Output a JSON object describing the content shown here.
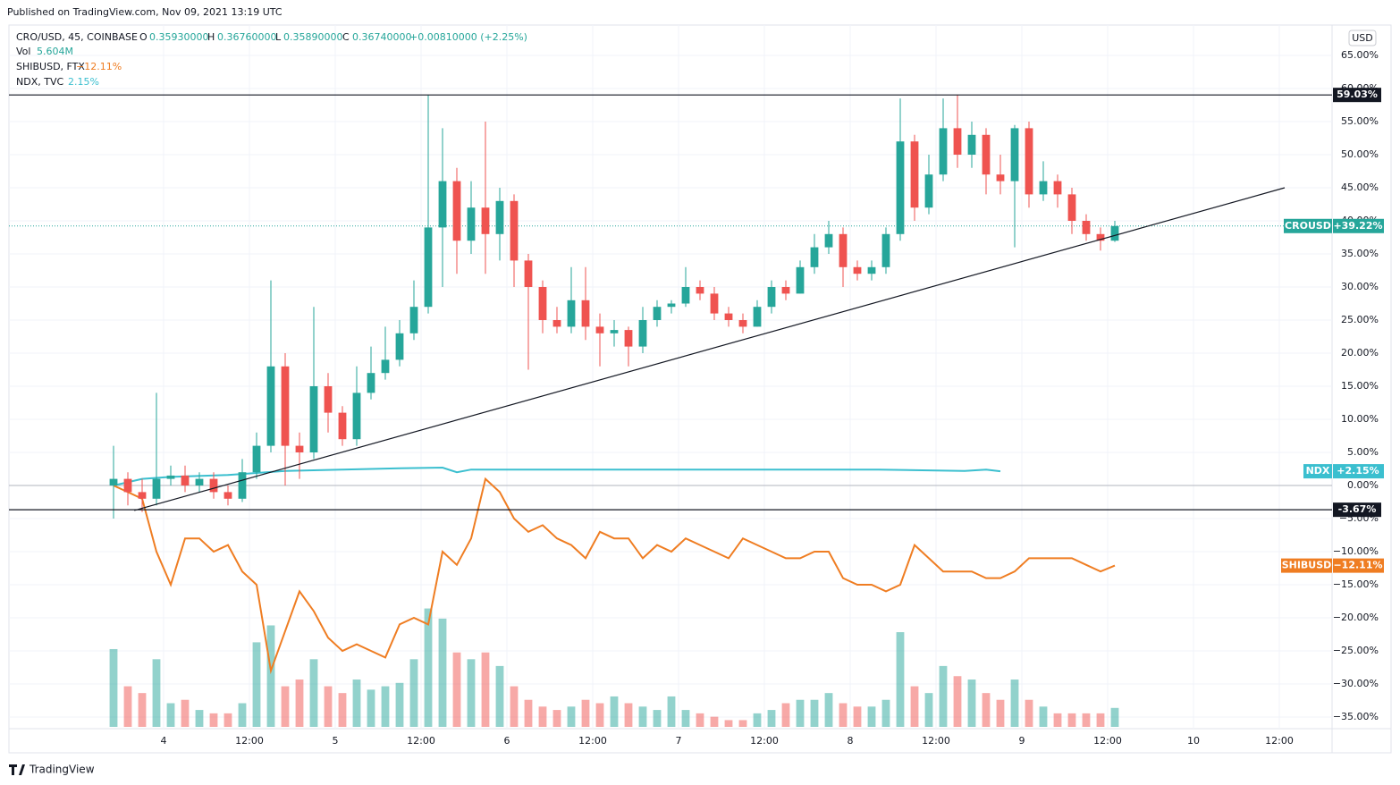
{
  "header": "Published on TradingView.com, Nov 09, 2021 13:19 UTC",
  "footer": "TradingView",
  "currency": "USD",
  "legend": {
    "symbol": "CRO/USD, 45, COINBASE",
    "o_key": "O",
    "o": "0.35930000",
    "h_key": "H",
    "h": "0.36760000",
    "l_key": "L",
    "l": "0.35890000",
    "c_key": "C",
    "c": "0.36740000",
    "change": "+0.00810000 (+2.25%)",
    "vol_key": "Vol",
    "vol": "5.604M",
    "shib_key": "SHIBUSD, FTX",
    "shib": "−12.11%",
    "ndx_key": "NDX, TVC",
    "ndx": "2.15%"
  },
  "chart_data": {
    "type": "candlestick",
    "x": [
      -7,
      -5,
      -3,
      -1,
      1,
      3,
      5,
      7,
      9,
      11,
      13,
      15,
      17,
      19,
      21,
      23,
      25,
      27,
      29,
      31,
      33,
      35,
      37,
      39,
      41,
      43,
      45,
      47,
      49,
      51,
      53,
      55,
      57,
      59,
      61,
      63,
      65,
      67,
      69,
      71,
      73,
      75,
      77,
      79,
      81,
      83,
      85,
      87,
      89,
      91,
      93,
      95,
      97,
      99,
      101,
      103,
      105,
      107,
      109,
      111,
      113,
      115,
      117,
      119,
      121,
      123,
      125,
      127,
      129,
      131,
      133
    ],
    "xlim": [
      -21.625,
      163.375
    ],
    "xticks": [
      {
        "value": 0,
        "label": "4"
      },
      {
        "value": 12,
        "label": "12:00"
      },
      {
        "value": 24,
        "label": "5"
      },
      {
        "value": 36,
        "label": "12:00"
      },
      {
        "value": 48,
        "label": "6"
      },
      {
        "value": 60,
        "label": "12:00"
      },
      {
        "value": 72,
        "label": "7"
      },
      {
        "value": 84,
        "label": "12:00"
      },
      {
        "value": 96,
        "label": "8"
      },
      {
        "value": 108,
        "label": "12:00"
      },
      {
        "value": 120,
        "label": "9"
      },
      {
        "value": 132,
        "label": "12:00"
      },
      {
        "value": 144,
        "label": "10"
      },
      {
        "value": 156,
        "label": "12:00"
      }
    ],
    "ylim": [
      -36.757,
      69.595
    ],
    "yticks": [
      {
        "value": 65,
        "label": "65.00%"
      },
      {
        "value": 60,
        "label": "60.00%"
      },
      {
        "value": 55,
        "label": "55.00%"
      },
      {
        "value": 50,
        "label": "50.00%"
      },
      {
        "value": 45,
        "label": "45.00%"
      },
      {
        "value": 40,
        "label": "40.00%"
      },
      {
        "value": 35,
        "label": "35.00%"
      },
      {
        "value": 30,
        "label": "30.00%"
      },
      {
        "value": 25,
        "label": "25.00%"
      },
      {
        "value": 20,
        "label": "20.00%"
      },
      {
        "value": 15,
        "label": "15.00%"
      },
      {
        "value": 10,
        "label": "10.00%"
      },
      {
        "value": 5,
        "label": "5.00%"
      },
      {
        "value": 0,
        "label": "0.00%"
      },
      {
        "value": -5,
        "label": "−5.00%"
      },
      {
        "value": -10,
        "label": "−10.00%"
      },
      {
        "value": -15,
        "label": "−15.00%"
      },
      {
        "value": -20,
        "label": "−20.00%"
      },
      {
        "value": -25,
        "label": "−25.00%"
      },
      {
        "value": -30,
        "label": "−30.00%"
      },
      {
        "value": -35,
        "label": "−35.00%"
      }
    ],
    "grid": true,
    "series": [
      {
        "name": "CROUSD",
        "type": "candlestick",
        "up_color": "#26a69a",
        "down_color": "#ef5350",
        "last_label": "+39.22%",
        "values": [
          [
            0,
            6,
            -5,
            1
          ],
          [
            1,
            2,
            -3,
            -1
          ],
          [
            -1,
            1,
            -4,
            -2
          ],
          [
            -2,
            14,
            -3,
            1
          ],
          [
            1,
            3,
            0,
            1.5
          ],
          [
            1.5,
            3,
            -1,
            0
          ],
          [
            0,
            2,
            -1,
            1
          ],
          [
            1,
            2,
            -2,
            -1
          ],
          [
            -1,
            0,
            -3,
            -2
          ],
          [
            -2,
            4,
            -2.5,
            2
          ],
          [
            2,
            8,
            1,
            6
          ],
          [
            6,
            31,
            5,
            18
          ],
          [
            18,
            20,
            0,
            6
          ],
          [
            6,
            8,
            1,
            5
          ],
          [
            5,
            27,
            4,
            15
          ],
          [
            15,
            17,
            8,
            11
          ],
          [
            11,
            12,
            6,
            7
          ],
          [
            7,
            18,
            6,
            14
          ],
          [
            14,
            21,
            13,
            17
          ],
          [
            17,
            24,
            16,
            19
          ],
          [
            19,
            25,
            18,
            23
          ],
          [
            23,
            31,
            22,
            27
          ],
          [
            27,
            59.03,
            26,
            39
          ],
          [
            39,
            54,
            30,
            46
          ],
          [
            46,
            48,
            32,
            37
          ],
          [
            37,
            46,
            35,
            42
          ],
          [
            42,
            55,
            32,
            38
          ],
          [
            38,
            45,
            34,
            43
          ],
          [
            43,
            44,
            30,
            34
          ],
          [
            34,
            35,
            17.5,
            30
          ],
          [
            30,
            31,
            23,
            25
          ],
          [
            25,
            27,
            23,
            24
          ],
          [
            24,
            33,
            23,
            28
          ],
          [
            28,
            33,
            22,
            24
          ],
          [
            24,
            26,
            18,
            23
          ],
          [
            23,
            25,
            21,
            23.5
          ],
          [
            23.5,
            24,
            18,
            21
          ],
          [
            21,
            27,
            20,
            25
          ],
          [
            25,
            28,
            24,
            27
          ],
          [
            27,
            28,
            26,
            27.5
          ],
          [
            27.5,
            33,
            27,
            30
          ],
          [
            30,
            31,
            28,
            29
          ],
          [
            29,
            30,
            25,
            26
          ],
          [
            26,
            27,
            24,
            25
          ],
          [
            25,
            26,
            23,
            24
          ],
          [
            24,
            28,
            24,
            27
          ],
          [
            27,
            31,
            26,
            30
          ],
          [
            30,
            31,
            28,
            29
          ],
          [
            29,
            34,
            29,
            33
          ],
          [
            33,
            38,
            32,
            36
          ],
          [
            36,
            40,
            35,
            38
          ],
          [
            38,
            39,
            30,
            33
          ],
          [
            33,
            34,
            31,
            32
          ],
          [
            32,
            34,
            31,
            33
          ],
          [
            33,
            39,
            32,
            38
          ],
          [
            38,
            58.5,
            37,
            52
          ],
          [
            52,
            53,
            40,
            42
          ],
          [
            42,
            50,
            41,
            47
          ],
          [
            47,
            58.5,
            46,
            54
          ],
          [
            54,
            59,
            48,
            50
          ],
          [
            50,
            55,
            48,
            53
          ],
          [
            53,
            54,
            44,
            47
          ],
          [
            47,
            50,
            44,
            46
          ],
          [
            46,
            54.5,
            36,
            54
          ],
          [
            54,
            55,
            42,
            44
          ],
          [
            44,
            49,
            43,
            46
          ],
          [
            46,
            47,
            42,
            44
          ],
          [
            44,
            45,
            38,
            40
          ],
          [
            40,
            41,
            37,
            38
          ],
          [
            38,
            39,
            35.5,
            37
          ],
          [
            37,
            40,
            36.8,
            39.22
          ]
        ]
      },
      {
        "name": "SHIBUSD",
        "type": "line",
        "color": "#ef7d22",
        "last_label": "−12.11%",
        "values": [
          0,
          -1,
          -2,
          -10,
          -15,
          -8,
          -8,
          -10,
          -9,
          -13,
          -15,
          -28,
          -22,
          -16,
          -19,
          -23,
          -25,
          -24,
          -25,
          -26,
          -21,
          -20,
          -21,
          -10,
          -12,
          -8,
          1,
          -1,
          -5,
          -7,
          -6,
          -8,
          -9,
          -11,
          -7,
          -8,
          -8,
          -11,
          -9,
          -10,
          -8,
          -9,
          -10,
          -11,
          -8,
          -9,
          -10,
          -11,
          -11,
          -10,
          -10,
          -14,
          -15,
          -15,
          -16,
          -15,
          -9,
          -11,
          -13,
          -13,
          -13,
          -14,
          -14,
          -13,
          -11,
          -11,
          -11,
          -11,
          -12,
          -13,
          -12.11
        ]
      },
      {
        "name": "NDX",
        "type": "line",
        "color": "#3bbfcf",
        "last_label": "+2.15%",
        "x": [
          -7,
          -3,
          1,
          9,
          17,
          25,
          33,
          39,
          41,
          43,
          60,
          80,
          100,
          112,
          115,
          117
        ],
        "values": [
          0,
          1.0,
          1.3,
          1.6,
          2.2,
          2.4,
          2.6,
          2.7,
          2.0,
          2.4,
          2.4,
          2.4,
          2.4,
          2.2,
          2.4,
          2.15
        ]
      }
    ],
    "volume": {
      "ylim": [
        0,
        37
      ],
      "up_color": "rgba(38,166,154,0.5)",
      "down_color": "rgba(239,83,80,0.5)",
      "values": [
        23,
        12,
        10,
        20,
        7,
        8,
        5,
        4,
        4,
        7,
        25,
        30,
        12,
        14,
        20,
        12,
        10,
        14,
        11,
        12,
        13,
        20,
        35,
        32,
        22,
        20,
        22,
        18,
        12,
        8,
        6,
        5,
        6,
        8,
        7,
        9,
        7,
        6,
        5,
        9,
        5,
        4,
        3,
        2,
        2,
        4,
        5,
        7,
        8,
        8,
        10,
        7,
        6,
        6,
        8,
        28,
        12,
        10,
        18,
        15,
        14,
        10,
        8,
        14,
        8,
        6,
        4,
        4,
        4,
        4,
        5.604
      ]
    },
    "levels": [
      {
        "value": 59.03,
        "label": "59.03%"
      },
      {
        "value": -3.67,
        "label": "-3.67%"
      }
    ],
    "trendline": {
      "x": [
        -4.1,
        156.75
      ],
      "values": [
        -3.78,
        45
      ]
    }
  }
}
